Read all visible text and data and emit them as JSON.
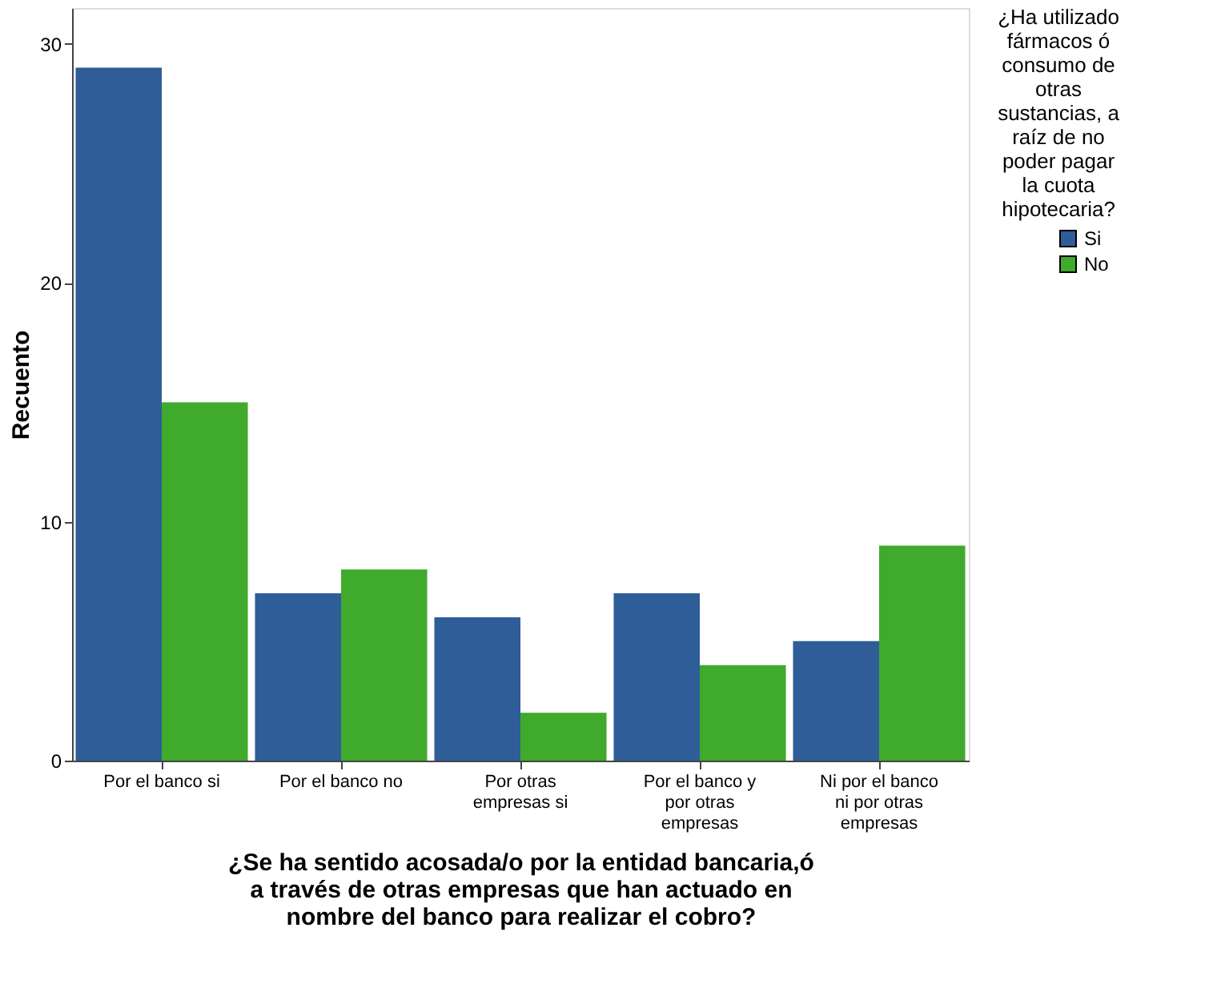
{
  "chart_data": {
    "type": "bar",
    "categories": [
      "Por el banco si",
      "Por el banco no",
      "Por otras empresas si",
      "Por el banco y por otras empresas",
      "Ni por el banco ni por otras empresas"
    ],
    "series": [
      {
        "name": "Si",
        "color": "#2f5d98",
        "values": [
          29,
          7,
          6,
          7,
          5
        ]
      },
      {
        "name": "No",
        "color": "#3faa2c",
        "values": [
          15,
          8,
          2,
          4,
          9
        ]
      }
    ],
    "xlabel": "¿Se ha sentido acosada/o por la entidad bancaria,ó a través de otras empresas que han actuado en nombre del banco para realizar el cobro?",
    "ylabel": "Recuento",
    "legend_title": "¿Ha utilizado fármacos ó consumo de otras sustancias, a raíz de no poder pagar la cuota hipotecaria?",
    "ylim": [
      0,
      31.5
    ],
    "yticks": [
      0,
      10,
      20,
      30
    ],
    "grid": false,
    "legend": "top right"
  }
}
